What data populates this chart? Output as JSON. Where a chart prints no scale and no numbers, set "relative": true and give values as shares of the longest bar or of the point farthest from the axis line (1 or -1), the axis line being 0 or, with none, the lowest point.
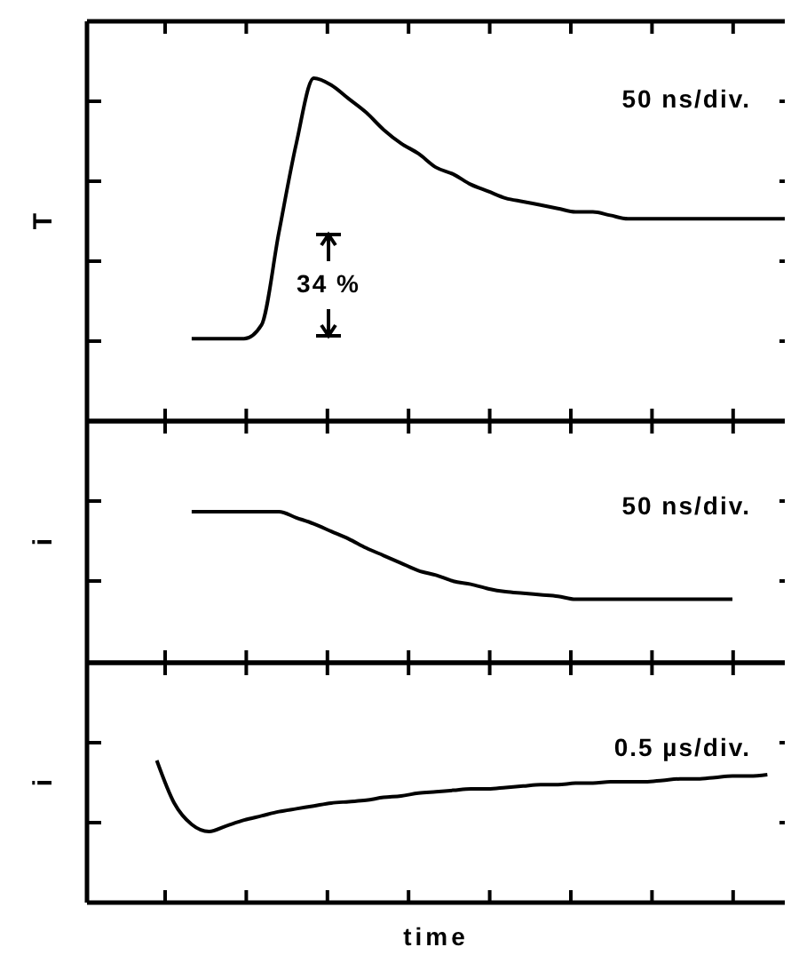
{
  "chart_data": [
    {
      "type": "line",
      "relative": true,
      "ylabel": "T",
      "annotations": [
        "50 ns/div.",
        "34 %"
      ],
      "grid": false,
      "marker": "none",
      "line_style": "solid",
      "categories": [
        null,
        null,
        null,
        null,
        null,
        null,
        null,
        null,
        null,
        null,
        null,
        null,
        null,
        null,
        null,
        null,
        null,
        null,
        null,
        null,
        null,
        null,
        null,
        null,
        null,
        null,
        null,
        null,
        null,
        null,
        null,
        null,
        null,
        null,
        null,
        null,
        null,
        null,
        null,
        null,
        null
      ],
      "series": [
        {
          "color": "#000000",
          "values": [
            null,
            null,
            null,
            null,
            null,
            null,
            0.24,
            0.24,
            0.24,
            0.24,
            0.28,
            0.55,
            0.81,
            1,
            0.98,
            0.94,
            0.9,
            0.85,
            0.81,
            0.78,
            0.74,
            0.72,
            0.69,
            0.67,
            0.65,
            0.64,
            0.63,
            0.62,
            0.61,
            0.61,
            0.6,
            0.59,
            0.59,
            0.59,
            0.59,
            0.59,
            0.59,
            0.59,
            0.59,
            0.59,
            0.59
          ]
        }
      ]
    },
    {
      "type": "line",
      "relative": true,
      "ylabel": "i",
      "annotations": [
        "50 ns/div."
      ],
      "grid": false,
      "marker": "none",
      "line_style": "solid",
      "categories": [
        null,
        null,
        null,
        null,
        null,
        null,
        null,
        null,
        null,
        null,
        null,
        null,
        null,
        null,
        null,
        null,
        null,
        null,
        null,
        null,
        null,
        null,
        null,
        null,
        null,
        null,
        null,
        null,
        null,
        null,
        null,
        null,
        null,
        null,
        null,
        null,
        null,
        null,
        null,
        null,
        null
      ],
      "series": [
        {
          "color": "#000000",
          "values": [
            null,
            null,
            null,
            null,
            null,
            null,
            1,
            1,
            1,
            1,
            1,
            1,
            0.96,
            0.92,
            0.87,
            0.82,
            0.76,
            0.71,
            0.66,
            0.61,
            0.58,
            0.54,
            0.52,
            0.49,
            0.47,
            0.46,
            0.45,
            0.44,
            0.42,
            0.42,
            0.42,
            0.42,
            0.42,
            0.42,
            0.42,
            0.42,
            0.42,
            0.42,
            null,
            null,
            null
          ]
        }
      ]
    },
    {
      "type": "line",
      "relative": true,
      "ylabel": "i",
      "xlabel": "time",
      "annotations": [
        "0.5 µs/div."
      ],
      "grid": false,
      "marker": "none",
      "line_style": "solid",
      "categories": [
        null,
        null,
        null,
        null,
        null,
        null,
        null,
        null,
        null,
        null,
        null,
        null,
        null,
        null,
        null,
        null,
        null,
        null,
        null,
        null,
        null,
        null,
        null,
        null,
        null,
        null,
        null,
        null,
        null,
        null,
        null,
        null,
        null,
        null,
        null,
        null,
        null,
        null,
        null,
        null,
        null
      ],
      "series": [
        {
          "color": "#000000",
          "values": [
            null,
            null,
            null,
            null,
            1,
            0.7,
            0.55,
            0.5,
            0.54,
            0.58,
            0.61,
            0.64,
            0.66,
            0.68,
            0.7,
            0.71,
            0.72,
            0.74,
            0.75,
            0.77,
            0.78,
            0.79,
            0.8,
            0.8,
            0.81,
            0.82,
            0.83,
            0.83,
            0.84,
            0.84,
            0.85,
            0.85,
            0.85,
            0.86,
            0.87,
            0.87,
            0.88,
            0.89,
            0.89,
            0.9,
            null
          ]
        }
      ]
    }
  ]
}
